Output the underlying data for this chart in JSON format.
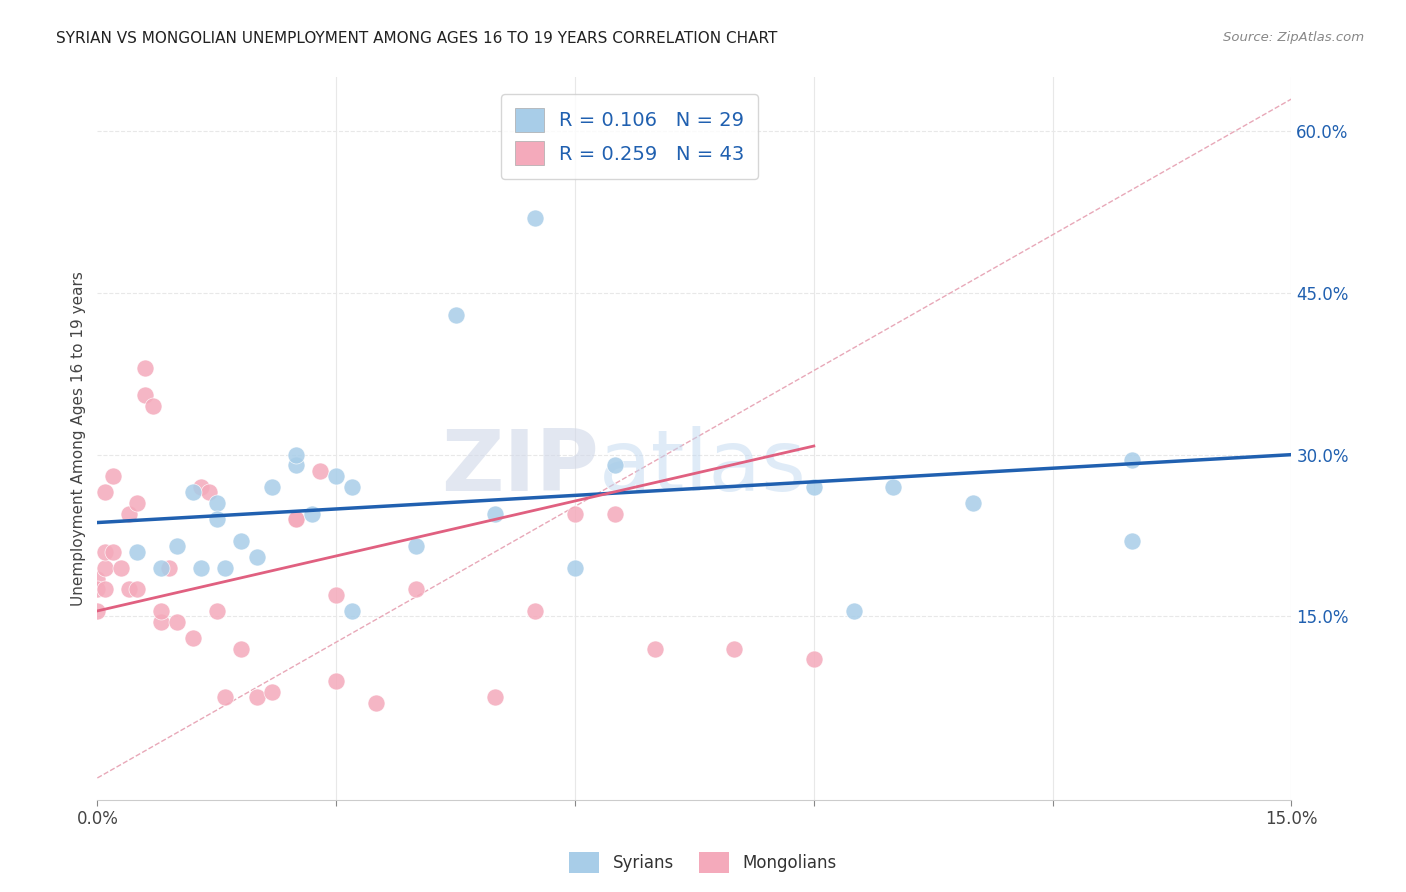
{
  "title": "SYRIAN VS MONGOLIAN UNEMPLOYMENT AMONG AGES 16 TO 19 YEARS CORRELATION CHART",
  "source": "Source: ZipAtlas.com",
  "ylabel": "Unemployment Among Ages 16 to 19 years",
  "xlim": [
    0.0,
    0.15
  ],
  "ylim": [
    -0.02,
    0.65
  ],
  "xticks": [
    0.0,
    0.03,
    0.06,
    0.09,
    0.12,
    0.15
  ],
  "xtick_labels": [
    "0.0%",
    "",
    "",
    "",
    "",
    "15.0%"
  ],
  "yticks_right": [
    0.15,
    0.3,
    0.45,
    0.6
  ],
  "ytick_labels_right": [
    "15.0%",
    "30.0%",
    "45.0%",
    "60.0%"
  ],
  "watermark_zip": "ZIP",
  "watermark_atlas": "atlas",
  "syrians_color": "#A8CDE8",
  "mongolians_color": "#F4AABB",
  "syrians_line_color": "#2060B0",
  "mongolians_line_color": "#E06080",
  "diagonal_color": "#E8A8B8",
  "syrians_R": 0.106,
  "syrians_N": 29,
  "mongolians_R": 0.259,
  "mongolians_N": 43,
  "syrians_x": [
    0.005,
    0.008,
    0.01,
    0.012,
    0.013,
    0.015,
    0.015,
    0.016,
    0.018,
    0.02,
    0.022,
    0.025,
    0.025,
    0.027,
    0.03,
    0.032,
    0.032,
    0.04,
    0.045,
    0.05,
    0.055,
    0.06,
    0.065,
    0.09,
    0.095,
    0.1,
    0.11,
    0.13,
    0.13
  ],
  "syrians_y": [
    0.21,
    0.195,
    0.215,
    0.265,
    0.195,
    0.255,
    0.24,
    0.195,
    0.22,
    0.205,
    0.27,
    0.29,
    0.3,
    0.245,
    0.28,
    0.27,
    0.155,
    0.215,
    0.43,
    0.245,
    0.52,
    0.195,
    0.29,
    0.27,
    0.155,
    0.27,
    0.255,
    0.295,
    0.22
  ],
  "mongolians_x": [
    0.0,
    0.0,
    0.0,
    0.001,
    0.001,
    0.001,
    0.001,
    0.002,
    0.002,
    0.003,
    0.004,
    0.004,
    0.005,
    0.005,
    0.006,
    0.006,
    0.007,
    0.008,
    0.008,
    0.009,
    0.01,
    0.012,
    0.013,
    0.014,
    0.015,
    0.016,
    0.018,
    0.02,
    0.022,
    0.025,
    0.025,
    0.028,
    0.03,
    0.03,
    0.035,
    0.04,
    0.05,
    0.055,
    0.06,
    0.065,
    0.07,
    0.08,
    0.09
  ],
  "mongolians_y": [
    0.185,
    0.175,
    0.155,
    0.195,
    0.175,
    0.21,
    0.265,
    0.28,
    0.21,
    0.195,
    0.245,
    0.175,
    0.255,
    0.175,
    0.355,
    0.38,
    0.345,
    0.145,
    0.155,
    0.195,
    0.145,
    0.13,
    0.27,
    0.265,
    0.155,
    0.075,
    0.12,
    0.075,
    0.08,
    0.24,
    0.24,
    0.285,
    0.09,
    0.17,
    0.07,
    0.175,
    0.075,
    0.155,
    0.245,
    0.245,
    0.12,
    0.12,
    0.11
  ],
  "syrians_intercept": 0.237,
  "syrians_slope": 0.42,
  "mongolians_intercept": 0.155,
  "mongolians_slope": 1.7,
  "mongolians_line_xmax": 0.09,
  "background_color": "#FFFFFF",
  "grid_color": "#E8E8E8"
}
